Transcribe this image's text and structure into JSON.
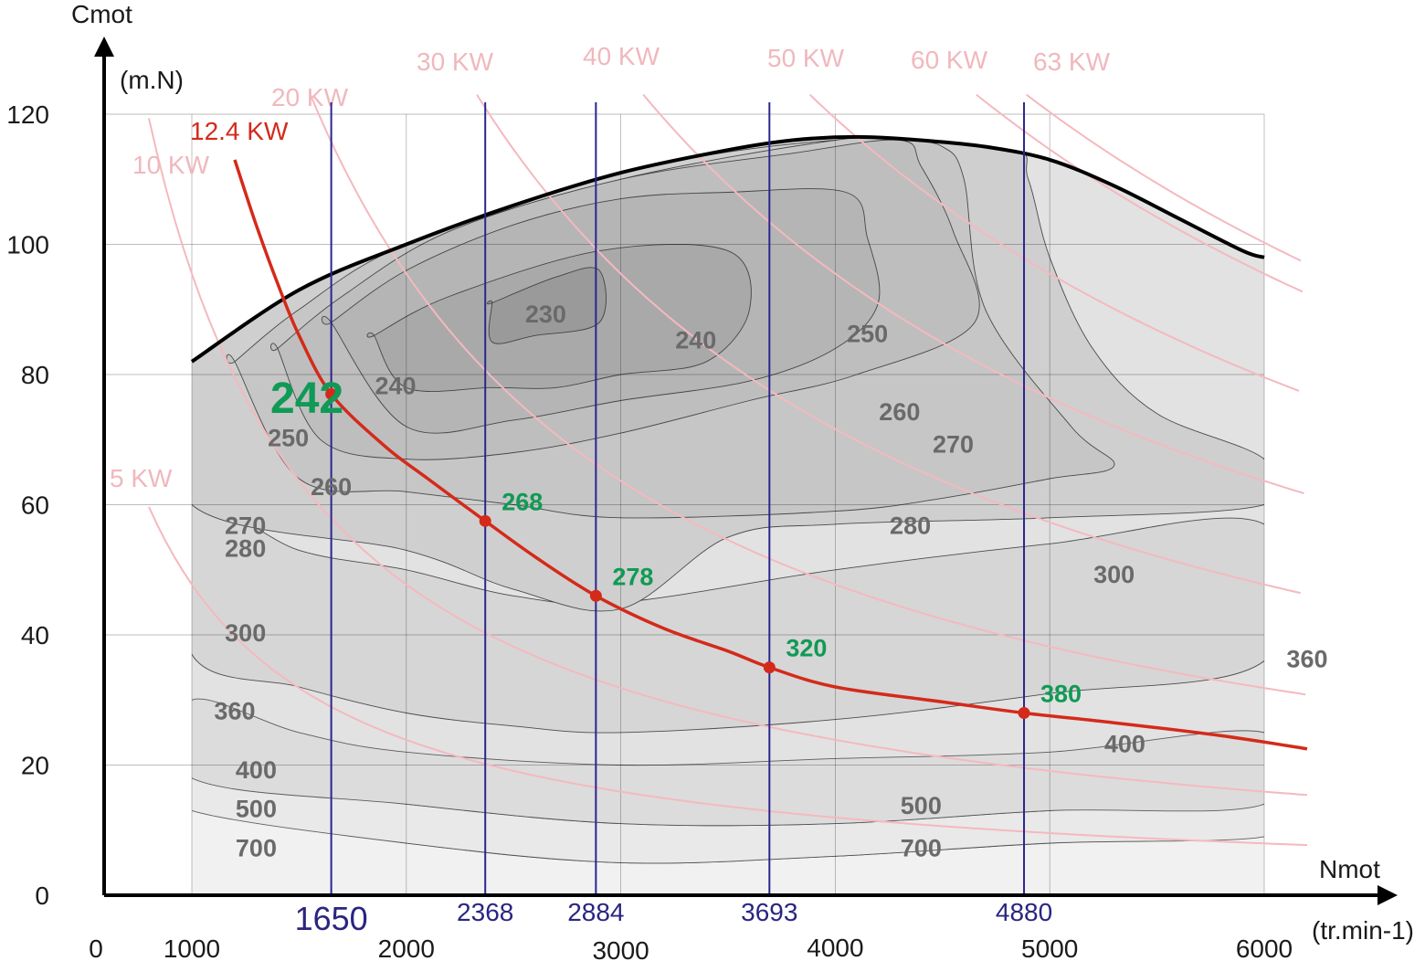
{
  "chart_data": {
    "type": "line",
    "title": "",
    "xlabel": "Nmot",
    "xunit": "(tr.min-1)",
    "ylabel": "Cmot",
    "yunit": "(m.N)",
    "xlim": [
      0,
      6500
    ],
    "ylim": [
      0,
      125
    ],
    "x_ticks": [
      "0",
      "1000",
      "2000",
      "3000",
      "4000",
      "5000",
      "6000"
    ],
    "y_ticks": [
      "0",
      "20",
      "40",
      "60",
      "80",
      "100",
      "120"
    ],
    "grid": true,
    "max_torque_curve": {
      "x": [
        1000,
        1500,
        2000,
        2500,
        3000,
        3500,
        3800,
        4100,
        4400,
        4700,
        5000,
        5300,
        5600,
        5900,
        6000
      ],
      "y": [
        82,
        93,
        100,
        106,
        111,
        114.5,
        116,
        116.5,
        116,
        115,
        113,
        109,
        104,
        99,
        98
      ]
    },
    "operating_curve": {
      "label": "12.4 KW",
      "color": "#d42a1a",
      "x": [
        1200,
        1300,
        1400,
        1500,
        1650,
        1900,
        2100,
        2368,
        2600,
        2884,
        3200,
        3500,
        3693,
        4000,
        4500,
        4880,
        5300,
        5800,
        6200
      ],
      "y": [
        113,
        103,
        94,
        86,
        77,
        69,
        64,
        57.5,
        52,
        46,
        41,
        37.5,
        35,
        32,
        29.7,
        28,
        26.5,
        24.5,
        22.5
      ]
    },
    "rpm_markers": [
      {
        "x": 1650,
        "label": "1650"
      },
      {
        "x": 2368,
        "label": "2368"
      },
      {
        "x": 2884,
        "label": "2884"
      },
      {
        "x": 3693,
        "label": "3693"
      },
      {
        "x": 4880,
        "label": "4880"
      }
    ],
    "operating_points": [
      {
        "x": 1650,
        "y": 77,
        "label": "242"
      },
      {
        "x": 2368,
        "y": 57.5,
        "label": "268"
      },
      {
        "x": 2884,
        "y": 46,
        "label": "278"
      },
      {
        "x": 3693,
        "y": 35,
        "label": "320"
      },
      {
        "x": 4880,
        "y": 28,
        "label": "380"
      }
    ],
    "power_curves": [
      {
        "label": "5 KW",
        "kw": 5
      },
      {
        "label": "10 KW",
        "kw": 10
      },
      {
        "label": "20 KW",
        "kw": 20
      },
      {
        "label": "30 KW",
        "kw": 30
      },
      {
        "label": "40 KW",
        "kw": 40
      },
      {
        "label": "50 KW",
        "kw": 50
      },
      {
        "label": "60 KW",
        "kw": 60
      },
      {
        "label": "63 KW",
        "kw": 63
      }
    ],
    "iso_bsfc_labels": [
      {
        "label": "230",
        "x": 2650,
        "y": 88
      },
      {
        "label": "240",
        "x": 1950,
        "y": 77
      },
      {
        "label": "240",
        "x": 3350,
        "y": 84
      },
      {
        "label": "250",
        "x": 1450,
        "y": 69
      },
      {
        "label": "250",
        "x": 4150,
        "y": 85
      },
      {
        "label": "260",
        "x": 1650,
        "y": 61.5
      },
      {
        "label": "260",
        "x": 4300,
        "y": 73
      },
      {
        "label": "270",
        "x": 1250,
        "y": 55.5
      },
      {
        "label": "270",
        "x": 4550,
        "y": 68
      },
      {
        "label": "280",
        "x": 1250,
        "y": 52
      },
      {
        "label": "280",
        "x": 4350,
        "y": 55.5
      },
      {
        "label": "300",
        "x": 1250,
        "y": 39
      },
      {
        "label": "300",
        "x": 5300,
        "y": 48
      },
      {
        "label": "360",
        "x": 1200,
        "y": 27
      },
      {
        "label": "360",
        "x": 6200,
        "y": 35
      },
      {
        "label": "400",
        "x": 1300,
        "y": 18
      },
      {
        "label": "400",
        "x": 5350,
        "y": 22
      },
      {
        "label": "500",
        "x": 1300,
        "y": 12
      },
      {
        "label": "500",
        "x": 4400,
        "y": 12.5
      },
      {
        "label": "700",
        "x": 1300,
        "y": 6
      },
      {
        "label": "700",
        "x": 4400,
        "y": 6
      }
    ],
    "bsfc_regions": [
      {
        "level": "700",
        "color": "#f1f1f1",
        "x": [
          1000,
          2000,
          3000,
          4000,
          5000,
          6000,
          6000,
          5000,
          4000,
          3000,
          2000,
          1000
        ],
        "y": [
          13,
          8,
          5,
          6,
          8,
          9,
          0,
          0,
          0,
          0,
          0,
          0
        ]
      },
      {
        "level": "500",
        "color": "#e9e9e9",
        "x": [
          1000,
          2000,
          3000,
          4000,
          5000,
          6000,
          6000,
          5000,
          4000,
          3000,
          2000,
          1000
        ],
        "y": [
          18,
          14,
          11,
          11,
          13,
          14,
          9,
          8,
          6,
          5,
          8,
          13
        ]
      },
      {
        "level": "400",
        "color": "#dcdcdc",
        "x": [
          1000,
          1500,
          2000,
          3000,
          4000,
          5000,
          6000,
          6000,
          5000,
          4000,
          3000,
          2000,
          1000
        ],
        "y": [
          30,
          25,
          22,
          20,
          21,
          22,
          25,
          14,
          13,
          11,
          11,
          14,
          18
        ]
      }
    ],
    "bsfc_contours": [
      {
        "level": "230",
        "color": "#9a9a9a",
        "x": [
          2400,
          2700,
          2900,
          2900,
          2600,
          2400,
          2400
        ],
        "y": [
          91,
          95,
          96,
          88,
          86,
          85,
          91
        ]
      },
      {
        "level": "240",
        "color": "#a9a9a9",
        "x": [
          1850,
          2200,
          2900,
          3500,
          3600,
          3400,
          3000,
          2700,
          2400,
          2000,
          1850
        ],
        "y": [
          86,
          92,
          99,
          99,
          90,
          82,
          80,
          78,
          78,
          78,
          86
        ]
      },
      {
        "level": "250",
        "color": "#b5b5b5",
        "x": [
          1650,
          2000,
          2500,
          3000,
          3500,
          4050,
          4150,
          4200,
          4000,
          3600,
          3000,
          2500,
          2000,
          1650
        ],
        "y": [
          88,
          96,
          103,
          107,
          108,
          108,
          101,
          91,
          84,
          79,
          76,
          73,
          72,
          88
        ]
      },
      {
        "level": "260",
        "color": "#bebebe",
        "x": [
          1400,
          1700,
          2200,
          3000,
          3800,
          4300,
          4400,
          4550,
          4650,
          4100,
          3600,
          3000,
          2500,
          2000,
          1600,
          1400
        ],
        "y": [
          84,
          92,
          102,
          110,
          114,
          116,
          112,
          102,
          88,
          80,
          76,
          71,
          68,
          67,
          70,
          84
        ]
      },
      {
        "level": "270",
        "color": "#c6c6c6",
        "x": [
          1200,
          1500,
          2000,
          3000,
          4000,
          4300,
          4500,
          4600,
          4700,
          5100,
          5300,
          5000,
          4500,
          4000,
          3000,
          2500,
          2000,
          1500,
          1200
        ],
        "y": [
          82,
          90,
          100,
          110,
          116,
          116,
          115,
          110,
          90,
          72,
          66,
          64,
          61,
          59,
          58,
          60,
          62,
          64,
          82
        ]
      },
      {
        "level": "280",
        "color": "#cfcfcf",
        "x": [
          1000,
          1500,
          2000,
          3000,
          4000,
          4800,
          4900,
          5000,
          5200,
          5500,
          6000,
          6000,
          5000,
          4000,
          3500,
          3000,
          2500,
          2000,
          1000
        ],
        "y": [
          82,
          93,
          100,
          111,
          116,
          115,
          110,
          98,
          84,
          74,
          67,
          60,
          58,
          57,
          55,
          44,
          47,
          53,
          60
        ]
      },
      {
        "level": "300",
        "color": "#d6d6d6",
        "x": [
          1000,
          1500,
          2000,
          2500,
          3000,
          4000,
          5000,
          6000,
          6000,
          5000,
          4000,
          3000,
          2500,
          2000,
          1500,
          1000
        ],
        "y": [
          60,
          53,
          50,
          46,
          45,
          50,
          54,
          57,
          36,
          31,
          27,
          25,
          26,
          28,
          32,
          37
        ]
      }
    ]
  }
}
